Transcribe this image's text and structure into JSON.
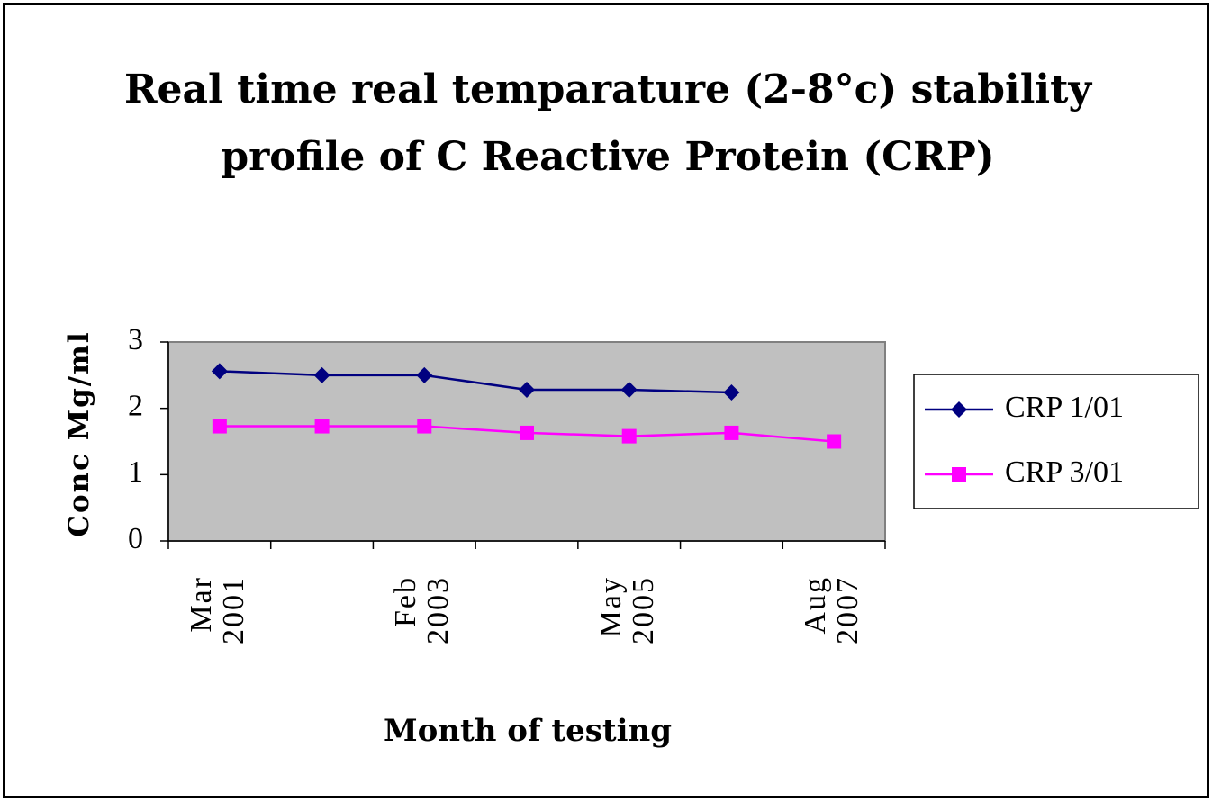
{
  "chart_data": {
    "type": "line",
    "title": "Real time real temparature (2-8°c) stability profile of C Reactive Protein (CRP)",
    "xlabel": "Month of testing",
    "ylabel": "Conc Mg/ml",
    "categories": [
      "Mar 2001",
      null,
      "Feb 2003",
      null,
      "May 2005",
      null,
      "Aug 2007"
    ],
    "series": [
      {
        "name": "CRP 1/01",
        "color": "#000080",
        "marker": "diamond",
        "values": [
          2.56,
          2.5,
          2.5,
          2.28,
          2.28,
          2.24,
          null
        ]
      },
      {
        "name": "CRP 3/01",
        "color": "#ff00ff",
        "marker": "square",
        "values": [
          1.73,
          1.73,
          1.73,
          1.63,
          1.58,
          1.63,
          1.5
        ]
      }
    ],
    "ylim": [
      0,
      3
    ],
    "yticks": [
      0,
      1,
      2,
      3
    ],
    "grid": false,
    "plot_background": "#c0c0c0",
    "legend": "right"
  }
}
